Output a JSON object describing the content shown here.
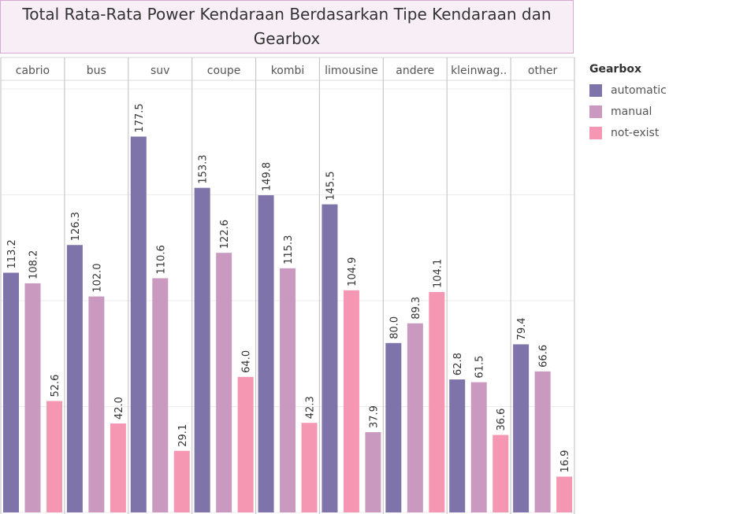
{
  "chart_data": {
    "type": "bar",
    "title": "Total Rata-Rata Power Kendaraan Berdasarkan Tipe Kendaraan dan Gearbox",
    "categories": [
      "cabrio",
      "bus",
      "suv",
      "coupe",
      "kombi",
      "limousine",
      "andere",
      "kleinwag..",
      "other"
    ],
    "series": [
      {
        "name": "automatic",
        "color": "#7f74aa",
        "values": [
          113.2,
          126.3,
          177.5,
          153.3,
          149.8,
          145.5,
          80.0,
          62.8,
          79.4
        ]
      },
      {
        "name": "manual",
        "color": "#c999c0",
        "values": [
          108.2,
          102.0,
          110.6,
          122.6,
          115.3,
          37.9,
          89.3,
          61.5,
          66.6
        ]
      },
      {
        "name": "not-exist",
        "color": "#f597b3",
        "values": [
          52.6,
          42.0,
          29.1,
          64.0,
          42.3,
          104.9,
          104.1,
          36.6,
          16.9
        ]
      }
    ],
    "series_order_per_category": [
      [
        "automatic",
        "manual",
        "not-exist"
      ],
      [
        "automatic",
        "manual",
        "not-exist"
      ],
      [
        "automatic",
        "manual",
        "not-exist"
      ],
      [
        "automatic",
        "manual",
        "not-exist"
      ],
      [
        "automatic",
        "manual",
        "not-exist"
      ],
      [
        "automatic",
        "not-exist",
        "manual"
      ],
      [
        "automatic",
        "manual",
        "not-exist"
      ],
      [
        "automatic",
        "manual",
        "not-exist"
      ],
      [
        "automatic",
        "manual",
        "not-exist"
      ]
    ],
    "ylim": [
      0,
      200
    ],
    "grid": true,
    "data_labels": true,
    "legend": {
      "title": "Gearbox",
      "placement": "right"
    }
  }
}
